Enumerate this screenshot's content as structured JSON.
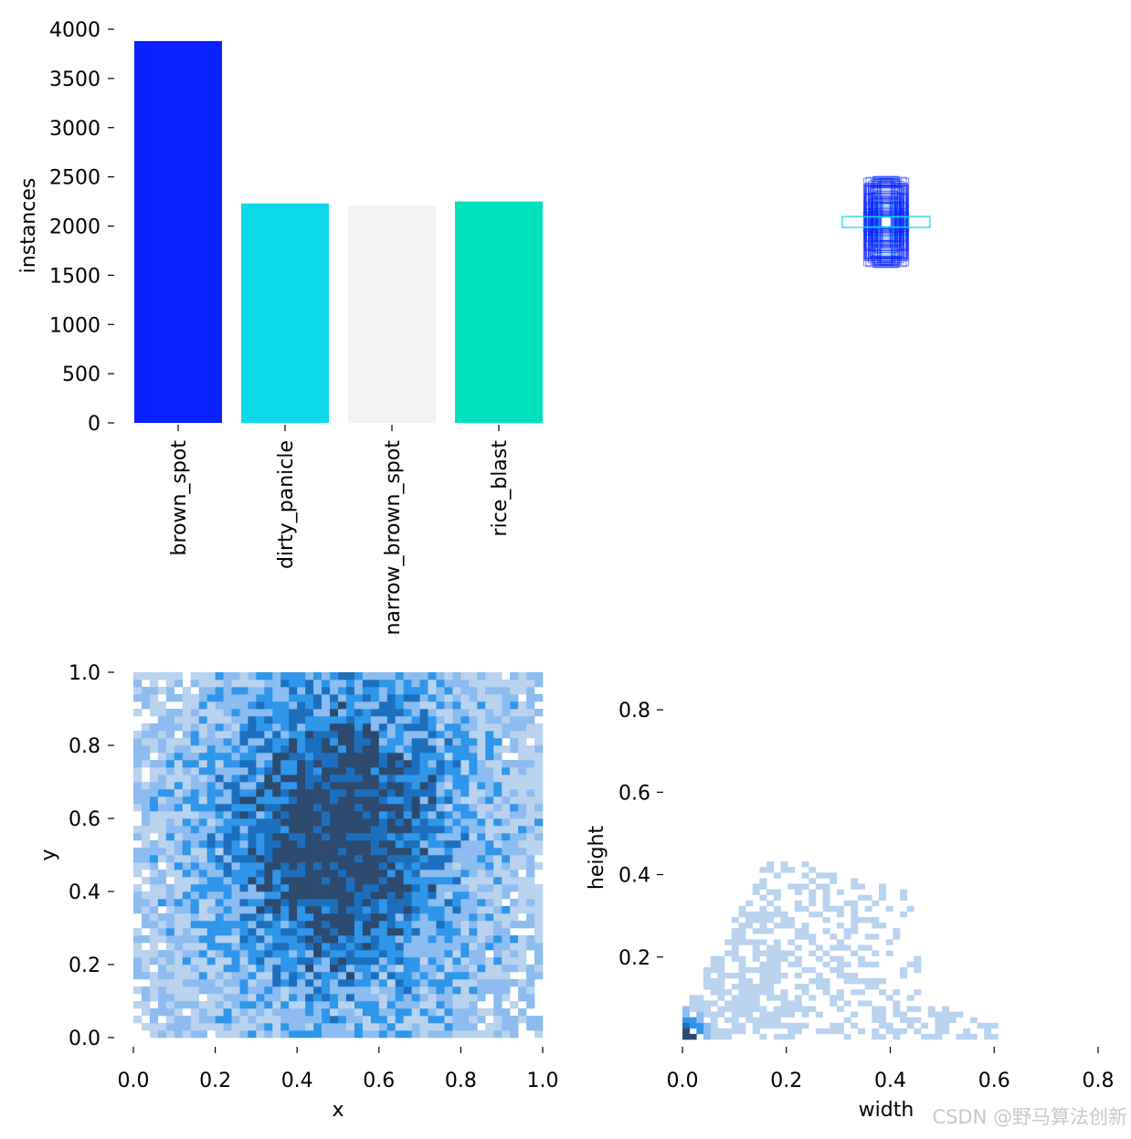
{
  "chart_data": [
    {
      "type": "bar",
      "ylabel": "instances",
      "ylim": [
        0,
        4000
      ],
      "yticks": [
        "0",
        "500",
        "1000",
        "1500",
        "2000",
        "2500",
        "3000",
        "3500",
        "4000"
      ],
      "categories": [
        "brown_spot",
        "dirty_panicle",
        "narrow_brown_spot",
        "rice_blast"
      ],
      "values": [
        3880,
        2230,
        2210,
        2250
      ],
      "colors": [
        "#0a21ff",
        "#0bd9e8",
        "#f2f2f2",
        "#00e0bd"
      ]
    },
    {
      "type": "scatter",
      "subtype": "bounding-box-overlay",
      "description_visible": false,
      "box_colors": [
        "#0a21ff",
        "#0bd9e8",
        "#00e0bd"
      ]
    },
    {
      "type": "heatmap",
      "xlabel": "x",
      "ylabel": "y",
      "xlim": [
        0,
        1
      ],
      "ylim": [
        0,
        1
      ],
      "xticks": [
        "0.0",
        "0.2",
        "0.4",
        "0.6",
        "0.8",
        "1.0"
      ],
      "yticks": [
        "0.0",
        "0.2",
        "0.4",
        "0.6",
        "0.8",
        "1.0"
      ],
      "center": [
        0.5,
        0.55
      ],
      "colormap": [
        "#b9d3ee",
        "#8cbcf0",
        "#2f96ea",
        "#1d6fbd",
        "#2c4a6e"
      ]
    },
    {
      "type": "heatmap",
      "xlabel": "width",
      "ylabel": "height",
      "xlim": [
        0,
        0.8
      ],
      "ylim": [
        0,
        0.9
      ],
      "xticks": [
        "0.0",
        "0.2",
        "0.4",
        "0.6",
        "0.8"
      ],
      "yticks": [
        "0.2",
        "0.4",
        "0.6",
        "0.8"
      ],
      "colormap": [
        "#b9d3ee",
        "#8cbcf0",
        "#2f96ea",
        "#1d6fbd",
        "#2c4a6e"
      ]
    }
  ],
  "watermark": "CSDN @野马算法创新"
}
